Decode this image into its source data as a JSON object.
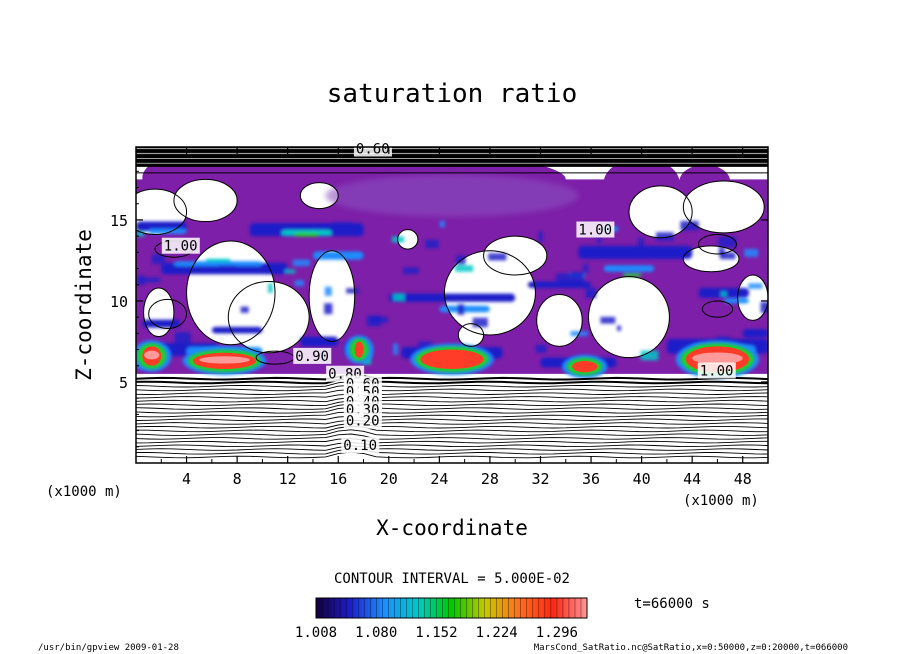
{
  "chart_data": {
    "type": "heatmap",
    "title": "saturation ratio",
    "xlabel": "X-coordinate",
    "ylabel": "Z-coordinate",
    "x_unit_left": "(x1000 m)",
    "x_unit_right": "(x1000 m)",
    "xlim": [
      0,
      50
    ],
    "ylim": [
      0,
      19.5
    ],
    "x_ticks": [
      4,
      8,
      12,
      16,
      20,
      24,
      28,
      32,
      36,
      40,
      44,
      48
    ],
    "y_ticks": [
      5,
      10,
      15
    ],
    "contour_interval_text": "CONTOUR INTERVAL = 5.000E-02",
    "time_text": "t=66000 s",
    "colorbar": {
      "min": 1.008,
      "max": 1.332,
      "tick_labels": [
        "1.008",
        "1.080",
        "1.152",
        "1.224",
        "1.296"
      ],
      "colors": [
        "#14003c",
        "#1e1ec8",
        "#1e8cff",
        "#00c8c8",
        "#00c800",
        "#c8c800",
        "#ff6e1e",
        "#ff2814",
        "#ff9696"
      ]
    },
    "fill_colors": {
      "saturated": "#7d1fa8",
      "low": "#1e1ec8",
      "mid": "#1e8cff",
      "cyan": "#00c8c8",
      "green": "#22d022",
      "red": "#ff3c28",
      "pink": "#ff9a9a"
    },
    "contour_labels": [
      {
        "text": "0.60",
        "x": 17.4,
        "z": 19.1
      },
      {
        "text": "1.00",
        "x": 2.2,
        "z": 13.1
      },
      {
        "text": "1.00",
        "x": 35.0,
        "z": 14.1
      },
      {
        "text": "1.00",
        "x": 44.6,
        "z": 5.4
      },
      {
        "text": "0.90",
        "x": 12.6,
        "z": 6.3
      },
      {
        "text": "0.80",
        "x": 15.2,
        "z": 5.2
      },
      {
        "text": "0.60",
        "x": 16.6,
        "z": 4.6
      },
      {
        "text": "0.50",
        "x": 16.6,
        "z": 4.1
      },
      {
        "text": "0.40",
        "x": 16.6,
        "z": 3.5
      },
      {
        "text": "0.30",
        "x": 16.6,
        "z": 3.0
      },
      {
        "text": "0.20",
        "x": 16.6,
        "z": 2.3
      },
      {
        "text": "0.10",
        "x": 16.4,
        "z": 0.8
      }
    ],
    "saturated_region_z": [
      5.5,
      17.5
    ],
    "high_saturation_cells": [
      {
        "x": [
          0.5,
          2.0
        ],
        "z": [
          6.0,
          7.2
        ],
        "peak": 1.3
      },
      {
        "x": [
          4.5,
          9.5
        ],
        "z": [
          5.8,
          6.8
        ],
        "peak": 1.33
      },
      {
        "x": [
          17.3,
          18.0
        ],
        "z": [
          6.5,
          7.5
        ],
        "peak": 1.25
      },
      {
        "x": [
          22.5,
          27.5
        ],
        "z": [
          5.8,
          7.0
        ],
        "peak": 1.2
      },
      {
        "x": [
          34.5,
          36.5
        ],
        "z": [
          5.6,
          6.3
        ],
        "peak": 1.18
      },
      {
        "x": [
          43.5,
          48.5
        ],
        "z": [
          5.6,
          7.2
        ],
        "peak": 1.32
      }
    ]
  },
  "footer": {
    "left": "/usr/bin/gpview  2009-01-28",
    "right": "MarsCond_SatRatio.nc@SatRatio,x=0:50000,z=0:20000,t=066000"
  }
}
